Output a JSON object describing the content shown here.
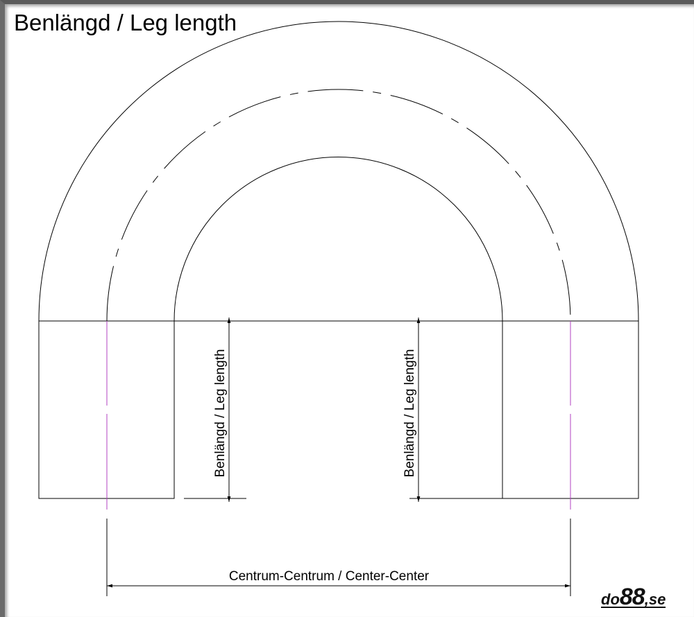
{
  "title": "Benlängd / Leg length",
  "leg_label_left": "Benlängd / Leg length",
  "leg_label_right": "Benlängd / Leg length",
  "center_label": "Centrum-Centrum / Center-Center",
  "logo": {
    "text": "do88.se",
    "part1": "do",
    "part2": "88",
    "part3": ",se"
  },
  "colors": {
    "lines": "#000000",
    "centerline": "#b040c0",
    "frame": "#5a5a5a"
  }
}
